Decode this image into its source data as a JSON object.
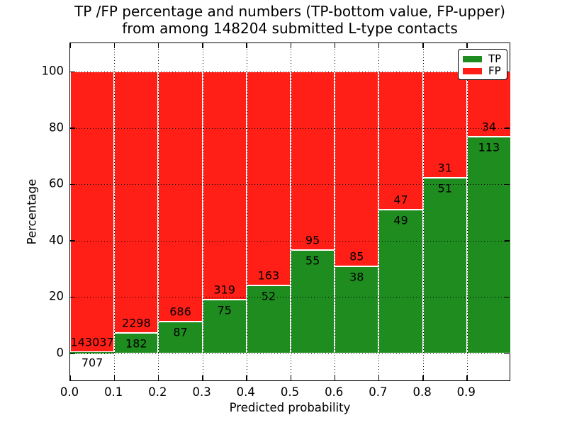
{
  "title": {
    "line1": "TP /FP percentage and numbers (TP-bottom value, FP-upper)",
    "line2": "from among 148204 submitted L-type contacts"
  },
  "axes": {
    "xlabel": "Predicted probability",
    "ylabel": "Percentage"
  },
  "legend": {
    "entries": [
      {
        "label": "TP",
        "color": "#1e8c1e"
      },
      {
        "label": "FP",
        "color": "#ff1f16"
      }
    ]
  },
  "chart_data": {
    "type": "bar",
    "stacked": true,
    "title": "TP /FP percentage and numbers (TP-bottom value, FP-upper)\nfrom among 148204 submitted L-type contacts",
    "xlabel": "Predicted probability",
    "ylabel": "Percentage",
    "total_contacts": 148204,
    "bin_starts": [
      0.0,
      0.1,
      0.2,
      0.3,
      0.4,
      0.5,
      0.6,
      0.7,
      0.8,
      0.9
    ],
    "bin_width": 0.1,
    "series": [
      {
        "name": "TP",
        "color": "#1e8c1e",
        "counts": [
          707,
          182,
          87,
          75,
          52,
          55,
          38,
          49,
          51,
          113
        ]
      },
      {
        "name": "FP",
        "color": "#ff1f16",
        "counts": [
          143037,
          2298,
          686,
          319,
          163,
          95,
          85,
          47,
          31,
          34
        ]
      }
    ],
    "tp_percent": [
      0.49,
      7.34,
      11.25,
      19.04,
      24.19,
      36.67,
      30.89,
      51.04,
      62.2,
      76.87
    ],
    "fp_percent": [
      99.51,
      92.66,
      88.75,
      80.96,
      75.81,
      63.33,
      69.11,
      48.96,
      37.8,
      23.13
    ],
    "bars_total_percent": 100,
    "xticks": [
      "0.0",
      "0.1",
      "0.2",
      "0.3",
      "0.4",
      "0.5",
      "0.6",
      "0.7",
      "0.8",
      "0.9"
    ],
    "yticks": [
      0,
      20,
      40,
      60,
      80,
      100
    ],
    "xlim": [
      0.0,
      1.0
    ],
    "ylim": [
      -10,
      110
    ],
    "grid": true,
    "legend_position": "upper right"
  }
}
